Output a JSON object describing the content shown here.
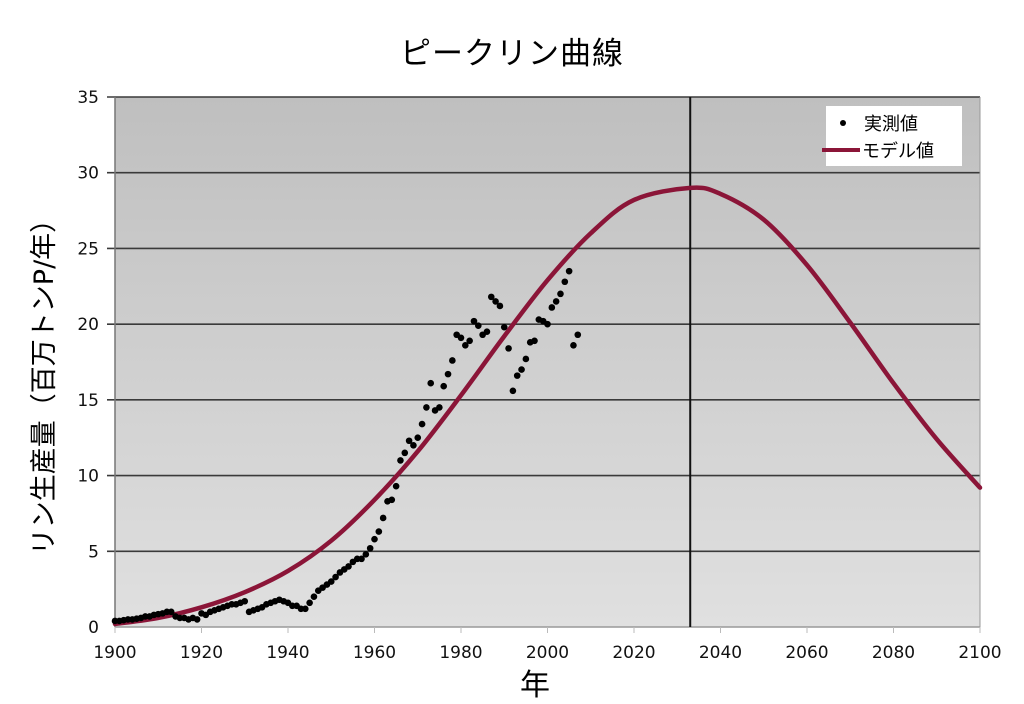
{
  "chart_data": {
    "type": "scatter+line",
    "title": "ピークリン曲線",
    "xlabel": "年",
    "ylabel": "リン生産量（百万トンP/年）",
    "xlim": [
      1900,
      2100
    ],
    "ylim": [
      0,
      35
    ],
    "x_ticks": [
      1900,
      1920,
      1940,
      1960,
      1980,
      2000,
      2020,
      2040,
      2060,
      2080,
      2100
    ],
    "y_ticks": [
      0,
      5,
      10,
      15,
      20,
      25,
      30,
      35
    ],
    "grid": "horizontal",
    "peak_marker": {
      "year": 2033,
      "value": 29
    },
    "legend": {
      "position": "top-right",
      "entries": [
        {
          "label": "実測値",
          "marker": "dot",
          "color": "#000000"
        },
        {
          "label": "モデル値",
          "marker": "line",
          "color": "#8b1538"
        }
      ]
    },
    "series": [
      {
        "name": "実測値",
        "type": "scatter",
        "x": [
          1900,
          1901,
          1902,
          1903,
          1904,
          1905,
          1906,
          1907,
          1908,
          1909,
          1910,
          1911,
          1912,
          1913,
          1914,
          1915,
          1916,
          1917,
          1918,
          1919,
          1920,
          1921,
          1922,
          1923,
          1924,
          1925,
          1926,
          1927,
          1928,
          1929,
          1930,
          1931,
          1932,
          1933,
          1934,
          1935,
          1936,
          1937,
          1938,
          1939,
          1940,
          1941,
          1942,
          1943,
          1944,
          1945,
          1946,
          1947,
          1948,
          1949,
          1950,
          1951,
          1952,
          1953,
          1954,
          1955,
          1956,
          1957,
          1958,
          1959,
          1960,
          1961,
          1962,
          1963,
          1964,
          1965,
          1966,
          1967,
          1968,
          1969,
          1970,
          1971,
          1972,
          1973,
          1974,
          1975,
          1976,
          1977,
          1978,
          1979,
          1980,
          1981,
          1982,
          1983,
          1984,
          1985,
          1986,
          1987,
          1988,
          1989,
          1990,
          1991,
          1992,
          1993,
          1994,
          1995,
          1996,
          1997,
          1998,
          1999,
          2000,
          2001,
          2002,
          2003,
          2004,
          2005,
          2006,
          2007
        ],
        "y": [
          0.4,
          0.4,
          0.45,
          0.5,
          0.5,
          0.55,
          0.6,
          0.7,
          0.7,
          0.8,
          0.85,
          0.9,
          1.0,
          1.0,
          0.7,
          0.6,
          0.6,
          0.5,
          0.6,
          0.5,
          0.9,
          0.8,
          1.0,
          1.1,
          1.2,
          1.3,
          1.4,
          1.5,
          1.5,
          1.6,
          1.7,
          1.0,
          1.1,
          1.2,
          1.3,
          1.5,
          1.6,
          1.7,
          1.8,
          1.7,
          1.6,
          1.4,
          1.4,
          1.2,
          1.2,
          1.6,
          2.0,
          2.4,
          2.6,
          2.8,
          3.0,
          3.3,
          3.6,
          3.8,
          4.0,
          4.3,
          4.5,
          4.5,
          4.8,
          5.2,
          5.8,
          6.3,
          7.2,
          8.3,
          8.4,
          9.3,
          11.0,
          11.5,
          12.3,
          12.0,
          12.5,
          13.4,
          14.5,
          16.1,
          14.3,
          14.5,
          15.9,
          16.7,
          17.6,
          19.3,
          19.1,
          18.6,
          18.9,
          20.2,
          19.9,
          19.3,
          19.5,
          21.8,
          21.5,
          21.2,
          19.8,
          18.4,
          15.6,
          16.6,
          17.0,
          17.7,
          18.8,
          18.9,
          20.3,
          20.2,
          20.0,
          21.1,
          21.5,
          22.0,
          22.8,
          23.5,
          18.6,
          19.3
        ]
      },
      {
        "name": "モデル値",
        "type": "line",
        "x": [
          1900,
          1910,
          1920,
          1930,
          1940,
          1950,
          1960,
          1970,
          1980,
          1990,
          2000,
          2010,
          2020,
          2033,
          2040,
          2050,
          2060,
          2070,
          2080,
          2090,
          2100
        ],
        "y": [
          0.2,
          0.6,
          1.3,
          2.3,
          3.7,
          5.7,
          8.4,
          11.6,
          15.3,
          19.2,
          22.9,
          26.0,
          28.2,
          29.0,
          28.6,
          26.9,
          23.9,
          20.1,
          16.1,
          12.4,
          9.2
        ]
      }
    ]
  },
  "title": "ピークリン曲線",
  "axes": {
    "y_label": "リン生産量（百万トンP/年）",
    "x_label": "年"
  },
  "legend": {
    "observed": "実測値",
    "model": "モデル値"
  },
  "colors": {
    "model_line": "#8b1538",
    "points": "#000000",
    "plot_bg_top": "#c2c2c2",
    "plot_bg_bottom": "#dedede",
    "grid": "#3a3a3a"
  }
}
